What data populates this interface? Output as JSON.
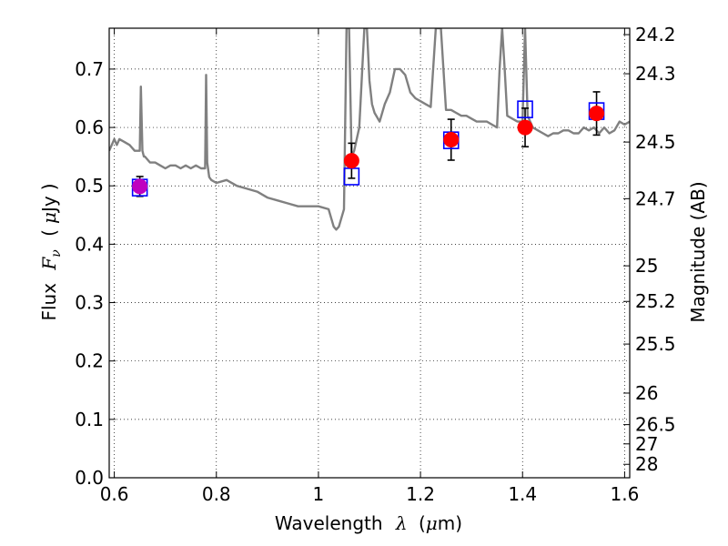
{
  "chart_data": {
    "type": "scatter",
    "xlabel": {
      "text": "Wavelength",
      "symbol": "λ",
      "unit_open": "(",
      "unit_mu": "μ",
      "unit_rest": "m)"
    },
    "ylabel": {
      "text": "Flux",
      "symbol": "F",
      "subscript": "ν",
      "unit_open": "(",
      "unit_mu": "μ",
      "unit_rest": "Jy",
      "unit_close": ")"
    },
    "y2label": "Magnitude (AB)",
    "xlim": [
      0.59,
      1.61
    ],
    "ylim": [
      0.0,
      0.77
    ],
    "grid": true,
    "x_ticks": [
      {
        "value": 0.6,
        "label": "0.6"
      },
      {
        "value": 0.8,
        "label": "0.8"
      },
      {
        "value": 1.0,
        "label": "1"
      },
      {
        "value": 1.2,
        "label": "1.2"
      },
      {
        "value": 1.4,
        "label": "1.4"
      },
      {
        "value": 1.6,
        "label": "1.6"
      }
    ],
    "y_ticks": [
      {
        "value": 0.0,
        "label": "0.0"
      },
      {
        "value": 0.1,
        "label": "0.1"
      },
      {
        "value": 0.2,
        "label": "0.2"
      },
      {
        "value": 0.3,
        "label": "0.3"
      },
      {
        "value": 0.4,
        "label": "0.4"
      },
      {
        "value": 0.5,
        "label": "0.5"
      },
      {
        "value": 0.6,
        "label": "0.6"
      },
      {
        "value": 0.7,
        "label": "0.7"
      }
    ],
    "y2_ticks": [
      {
        "flux": 0.759,
        "label": "24.2"
      },
      {
        "flux": 0.692,
        "label": "24.3"
      },
      {
        "flux": 0.575,
        "label": "24.5"
      },
      {
        "flux": 0.478,
        "label": "24.7"
      },
      {
        "flux": 0.363,
        "label": "25"
      },
      {
        "flux": 0.302,
        "label": "25.2"
      },
      {
        "flux": 0.229,
        "label": "25.5"
      },
      {
        "flux": 0.145,
        "label": "26"
      },
      {
        "flux": 0.091,
        "label": "26.5"
      },
      {
        "flux": 0.058,
        "label": "27"
      },
      {
        "flux": 0.023,
        "label": "28"
      }
    ],
    "series": [
      {
        "kind": "model-spectrum",
        "color": "#808080",
        "x": [
          0.59,
          0.6,
          0.605,
          0.61,
          0.62,
          0.63,
          0.64,
          0.65,
          0.652,
          0.655,
          0.658,
          0.66,
          0.67,
          0.68,
          0.69,
          0.7,
          0.71,
          0.72,
          0.73,
          0.74,
          0.75,
          0.76,
          0.77,
          0.778,
          0.78,
          0.782,
          0.786,
          0.79,
          0.8,
          0.82,
          0.84,
          0.86,
          0.88,
          0.9,
          0.92,
          0.94,
          0.96,
          0.98,
          1.0,
          1.02,
          1.03,
          1.035,
          1.04,
          1.05,
          1.055,
          1.06,
          1.065,
          1.07,
          1.075,
          1.08,
          1.09,
          1.095,
          1.1,
          1.105,
          1.11,
          1.12,
          1.13,
          1.14,
          1.15,
          1.16,
          1.17,
          1.18,
          1.19,
          1.2,
          1.21,
          1.22,
          1.23,
          1.24,
          1.25,
          1.26,
          1.27,
          1.28,
          1.29,
          1.3,
          1.31,
          1.32,
          1.33,
          1.34,
          1.35,
          1.355,
          1.36,
          1.365,
          1.37,
          1.38,
          1.39,
          1.4,
          1.405,
          1.41,
          1.42,
          1.43,
          1.44,
          1.45,
          1.46,
          1.47,
          1.48,
          1.49,
          1.5,
          1.51,
          1.52,
          1.53,
          1.54,
          1.55,
          1.56,
          1.57,
          1.58,
          1.59,
          1.6,
          1.61
        ],
        "y": [
          0.56,
          0.58,
          0.57,
          0.58,
          0.575,
          0.57,
          0.56,
          0.56,
          0.67,
          0.56,
          0.55,
          0.55,
          0.54,
          0.54,
          0.535,
          0.53,
          0.535,
          0.535,
          0.53,
          0.535,
          0.53,
          0.535,
          0.53,
          0.53,
          0.69,
          0.54,
          0.515,
          0.51,
          0.505,
          0.51,
          0.5,
          0.495,
          0.49,
          0.48,
          0.475,
          0.47,
          0.465,
          0.465,
          0.465,
          0.46,
          0.43,
          0.425,
          0.43,
          0.46,
          0.77,
          0.77,
          0.55,
          0.56,
          0.58,
          0.6,
          0.77,
          0.77,
          0.68,
          0.64,
          0.625,
          0.61,
          0.64,
          0.66,
          0.7,
          0.7,
          0.69,
          0.66,
          0.65,
          0.645,
          0.64,
          0.635,
          0.77,
          0.77,
          0.63,
          0.63,
          0.625,
          0.62,
          0.62,
          0.615,
          0.61,
          0.61,
          0.61,
          0.605,
          0.6,
          0.7,
          0.77,
          0.7,
          0.62,
          0.615,
          0.61,
          0.61,
          0.77,
          0.62,
          0.6,
          0.595,
          0.59,
          0.585,
          0.59,
          0.59,
          0.595,
          0.595,
          0.59,
          0.59,
          0.6,
          0.595,
          0.6,
          0.59,
          0.6,
          0.59,
          0.595,
          0.61,
          0.605,
          0.61
        ]
      },
      {
        "kind": "model-photometry",
        "marker": "open-square",
        "color": "#0000ff",
        "points": [
          [
            0.65,
            0.497
          ],
          [
            1.065,
            0.516
          ],
          [
            1.26,
            0.578
          ],
          [
            1.405,
            0.631
          ],
          [
            1.545,
            0.628
          ]
        ]
      },
      {
        "kind": "observed-photometry",
        "marker": "filled-circle",
        "color": "#ff0000",
        "points": [
          {
            "x": 1.065,
            "y": 0.543,
            "err": 0.03
          },
          {
            "x": 1.26,
            "y": 0.579,
            "err": 0.035
          },
          {
            "x": 1.405,
            "y": 0.6,
            "err": 0.033
          },
          {
            "x": 1.545,
            "y": 0.624,
            "err": 0.037
          }
        ]
      },
      {
        "kind": "observed-photometry-highlight",
        "marker": "filled-circle",
        "color": "#bf00bf",
        "points": [
          {
            "x": 0.65,
            "y": 0.499,
            "err": 0.017
          }
        ]
      }
    ]
  }
}
